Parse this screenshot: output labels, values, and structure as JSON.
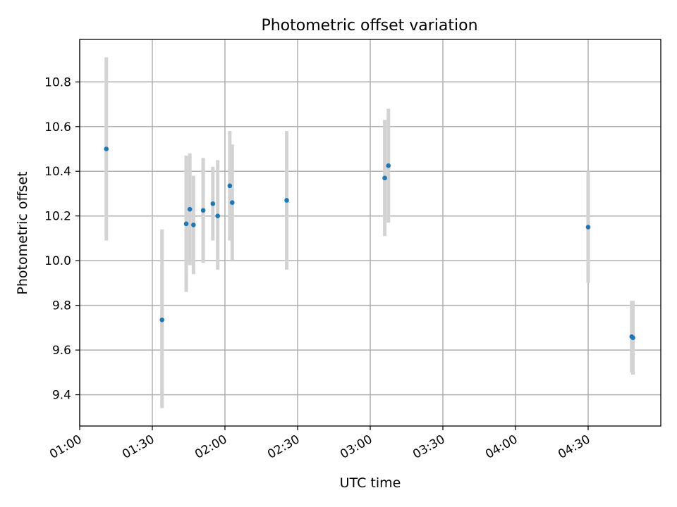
{
  "chart_data": {
    "type": "scatter",
    "title": "Photometric offset variation",
    "xlabel": "UTC time",
    "ylabel": "Photometric offset",
    "grid": true,
    "xlim": [
      "01:00",
      "05:00"
    ],
    "ylim": [
      9.26,
      10.99
    ],
    "x_ticks": [
      "01:00",
      "01:30",
      "02:00",
      "02:30",
      "03:00",
      "03:30",
      "04:00",
      "04:30"
    ],
    "y_ticks": [
      "9.4",
      "9.6",
      "9.8",
      "10.0",
      "10.2",
      "10.4",
      "10.6",
      "10.8"
    ],
    "colors": {
      "points": "#1f77b4",
      "errorbars": "#d3d3d3",
      "grid": "#b0b0b0"
    },
    "points": [
      {
        "x": "01:11",
        "y": 10.5,
        "ylow": 10.09,
        "yhigh": 10.91
      },
      {
        "x": "01:34",
        "y": 9.735,
        "ylow": 9.34,
        "yhigh": 10.14
      },
      {
        "x": "01:44",
        "y": 10.165,
        "ylow": 9.86,
        "yhigh": 10.47
      },
      {
        "x": "01:45.5",
        "y": 10.23,
        "ylow": 9.98,
        "yhigh": 10.48
      },
      {
        "x": "01:47",
        "y": 10.16,
        "ylow": 9.94,
        "yhigh": 10.38
      },
      {
        "x": "01:51",
        "y": 10.225,
        "ylow": 9.99,
        "yhigh": 10.46
      },
      {
        "x": "01:55",
        "y": 10.255,
        "ylow": 10.09,
        "yhigh": 10.42
      },
      {
        "x": "01:57",
        "y": 10.2,
        "ylow": 9.96,
        "yhigh": 10.45
      },
      {
        "x": "02:02",
        "y": 10.335,
        "ylow": 10.09,
        "yhigh": 10.58
      },
      {
        "x": "02:03",
        "y": 10.26,
        "ylow": 10.0,
        "yhigh": 10.52
      },
      {
        "x": "02:25.5",
        "y": 10.27,
        "ylow": 9.96,
        "yhigh": 10.58
      },
      {
        "x": "03:06",
        "y": 10.37,
        "ylow": 10.11,
        "yhigh": 10.63
      },
      {
        "x": "03:07.5",
        "y": 10.425,
        "ylow": 10.17,
        "yhigh": 10.68
      },
      {
        "x": "04:30",
        "y": 10.15,
        "ylow": 9.9,
        "yhigh": 10.4
      },
      {
        "x": "04:48",
        "y": 9.66,
        "ylow": 9.5,
        "yhigh": 9.82
      },
      {
        "x": "04:48.5",
        "y": 9.655,
        "ylow": 9.49,
        "yhigh": 9.82
      }
    ]
  }
}
